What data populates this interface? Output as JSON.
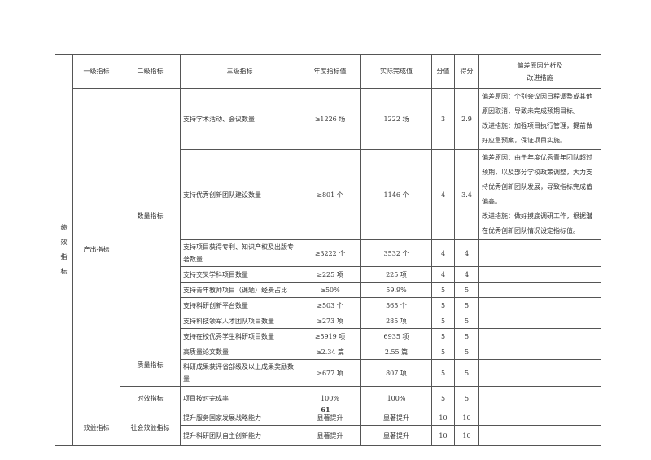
{
  "headers": {
    "level1": "一级指标",
    "level2": "二级指标",
    "level3": "三级指标",
    "target": "年度指标值",
    "actual": "实际完成值",
    "weight": "分值",
    "score": "得分",
    "deviation": "偏差原因分析及\n改进措施"
  },
  "category": "绩效指标",
  "l1": {
    "output": "产出指标",
    "benefit": "效益指标"
  },
  "l2": {
    "quantity": "数量指标",
    "quality": "质量指标",
    "timeliness": "时效指标",
    "social": "社会效益指标"
  },
  "rows": [
    {
      "name": "支持学术活动、会议数量",
      "target": "≥1226 场",
      "actual": "1222 场",
      "weight": "3",
      "score": "2.9",
      "deviation": "偏差原因：个别会议因日程调整或其他原因取消，导致未完成预期目标。\n改进措施：加强项目执行管理，提前做好应急预案，保证项目实施。"
    },
    {
      "name": "支持优秀创新团队建设数量",
      "target": "≥801 个",
      "actual": "1146 个",
      "weight": "4",
      "score": "3.4",
      "deviation": "偏差原因：由于年度优秀青年团队超过预期，以及部分学校政策调整，大力支持优秀创新团队发展，导致指标完成值偏高。\n改进措施：做好摸底调研工作，根据潜在优秀创新团队情况设定指标值。"
    },
    {
      "name": "支持项目获得专利、知识产权及出版专著数量",
      "target": "≥3222 个",
      "actual": "3532 个",
      "weight": "4",
      "score": "4",
      "deviation": ""
    },
    {
      "name": "支持交叉学科项目数量",
      "target": "≥225 项",
      "actual": "225 项",
      "weight": "4",
      "score": "4",
      "deviation": ""
    },
    {
      "name": "支持青年教师项目（课题）经费占比",
      "target": "≥50%",
      "actual": "59.9%",
      "weight": "5",
      "score": "5",
      "deviation": ""
    },
    {
      "name": "支持科研创新平台数量",
      "target": "≥503 个",
      "actual": "565 个",
      "weight": "5",
      "score": "5",
      "deviation": ""
    },
    {
      "name": "支持科技领军人才团队项目数量",
      "target": "≥273 项",
      "actual": "285 项",
      "weight": "5",
      "score": "5",
      "deviation": ""
    },
    {
      "name": "支持在校优秀学生科研项目数量",
      "target": "≥5919 项",
      "actual": "6935 项",
      "weight": "5",
      "score": "5",
      "deviation": ""
    },
    {
      "name": "高质量论文数量",
      "target": "≥2.34 篇",
      "actual": "2.55 篇",
      "weight": "5",
      "score": "5",
      "deviation": ""
    },
    {
      "name": "科研成果获评省部级及以上成果奖励数量",
      "target": "≥677 项",
      "actual": "807 项",
      "weight": "5",
      "score": "5",
      "deviation": ""
    },
    {
      "name": "项目按时完成率",
      "target": "100%",
      "actual": "100%",
      "weight": "5",
      "score": "5",
      "deviation": ""
    },
    {
      "name": "提升服务国家发展战略能力",
      "target": "显著提升",
      "actual": "显著提升",
      "weight": "10",
      "score": "10",
      "deviation": ""
    },
    {
      "name": "提升科研团队自主创新能力",
      "target": "显著提升",
      "actual": "显著提升",
      "weight": "10",
      "score": "10",
      "deviation": ""
    }
  ],
  "page_number": "61"
}
